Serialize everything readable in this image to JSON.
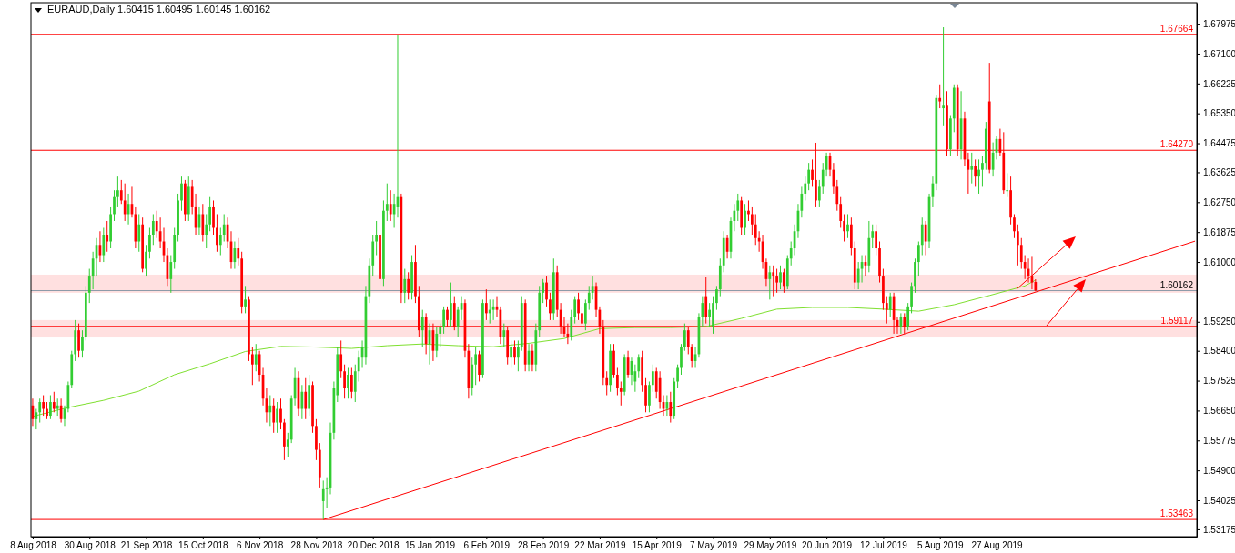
{
  "chart_data": {
    "type": "candlestick",
    "title": "EURAUD,Daily  1.60415 1.60495 1.60145 1.60162",
    "categories": [
      "8 Aug 2018",
      null,
      null,
      null,
      null,
      null,
      null,
      null,
      null,
      null,
      null,
      null,
      null,
      null,
      null,
      null,
      "30 Aug 2018",
      null,
      null,
      null,
      null,
      null,
      null,
      null,
      null,
      null,
      null,
      null,
      null,
      null,
      null,
      null,
      "21 Sep 2018",
      null,
      null,
      null,
      null,
      null,
      null,
      null,
      null,
      null,
      null,
      null,
      null,
      null,
      null,
      null,
      "15 Oct 2018",
      null,
      null,
      null,
      null,
      null,
      null,
      null,
      null,
      null,
      null,
      null,
      null,
      null,
      null,
      null,
      "6 Nov 2018",
      null,
      null,
      null,
      null,
      null,
      null,
      null,
      null,
      null,
      null,
      null,
      null,
      null,
      null,
      null,
      "28 Nov 2018",
      null,
      null,
      null,
      null,
      null,
      null,
      null,
      null,
      null,
      null,
      null,
      null,
      null,
      null,
      null,
      "20 Dec 2018",
      null,
      null,
      null,
      null,
      null,
      null,
      null,
      null,
      null,
      null,
      null,
      null,
      null,
      null,
      null,
      "15 Jan 2019",
      null,
      null,
      null,
      null,
      null,
      null,
      null,
      null,
      null,
      null,
      null,
      null,
      null,
      null,
      null,
      "6 Feb 2019",
      null,
      null,
      null,
      null,
      null,
      null,
      null,
      null,
      null,
      null,
      null,
      null,
      null,
      null,
      null,
      "28 Feb 2019",
      null,
      null,
      null,
      null,
      null,
      null,
      null,
      null,
      null,
      null,
      null,
      null,
      null,
      null,
      null,
      "22 Mar 2019",
      null,
      null,
      null,
      null,
      null,
      null,
      null,
      null,
      null,
      null,
      null,
      null,
      null,
      null,
      null,
      "15 Apr 2019",
      null,
      null,
      null,
      null,
      null,
      null,
      null,
      null,
      null,
      null,
      null,
      null,
      null,
      null,
      null,
      "7 May 2019",
      null,
      null,
      null,
      null,
      null,
      null,
      null,
      null,
      null,
      null,
      null,
      null,
      null,
      null,
      null,
      "29 May 2019",
      null,
      null,
      null,
      null,
      null,
      null,
      null,
      null,
      null,
      null,
      null,
      null,
      null,
      null,
      null,
      "20 Jun 2019",
      null,
      null,
      null,
      null,
      null,
      null,
      null,
      null,
      null,
      null,
      null,
      null,
      null,
      null,
      null,
      "12 Jul 2019",
      null,
      null,
      null,
      null,
      null,
      null,
      null,
      null,
      null,
      null,
      null,
      null,
      null,
      null,
      null,
      "5 Aug 2019",
      null,
      null,
      null,
      null,
      null,
      null,
      null,
      null,
      null,
      null,
      null,
      null,
      null,
      null,
      null,
      "27 Aug 2019",
      null,
      null,
      null,
      null,
      null,
      null,
      null,
      null,
      null,
      null,
      null,
      null,
      null,
      null,
      null,
      null,
      null,
      null,
      null,
      null,
      null,
      null,
      null,
      null,
      null,
      null,
      null,
      null,
      null,
      null,
      null,
      null,
      null,
      null,
      null,
      null,
      null,
      null,
      null,
      null,
      null,
      null,
      null,
      null,
      null,
      null,
      null,
      null,
      null,
      null,
      null,
      null,
      null,
      null,
      null,
      null
    ],
    "ohlc": [
      [
        1.568,
        1.57,
        1.562,
        1.564
      ],
      [
        1.564,
        1.567,
        1.561,
        1.566
      ],
      [
        1.566,
        1.57,
        1.563,
        1.569
      ],
      [
        1.569,
        1.571,
        1.565,
        1.567
      ],
      [
        1.567,
        1.569,
        1.564,
        1.565
      ],
      [
        1.565,
        1.571,
        1.564,
        1.569
      ],
      [
        1.569,
        1.572,
        1.566,
        1.567
      ],
      [
        1.567,
        1.57,
        1.565,
        1.568
      ],
      [
        1.568,
        1.57,
        1.563,
        1.564
      ],
      [
        1.564,
        1.568,
        1.562,
        1.567
      ],
      [
        1.567,
        1.575,
        1.566,
        1.574
      ],
      [
        1.574,
        1.584,
        1.573,
        1.583
      ],
      [
        1.583,
        1.593,
        1.581,
        1.59
      ],
      [
        1.59,
        1.592,
        1.582,
        1.584
      ],
      [
        1.584,
        1.59,
        1.582,
        1.588
      ],
      [
        1.588,
        1.603,
        1.587,
        1.601
      ],
      [
        1.601,
        1.608,
        1.598,
        1.606
      ],
      [
        1.606,
        1.613,
        1.602,
        1.611
      ],
      [
        1.611,
        1.617,
        1.606,
        1.615
      ],
      [
        1.615,
        1.619,
        1.61,
        1.612
      ],
      [
        1.612,
        1.62,
        1.61,
        1.618
      ],
      [
        1.618,
        1.622,
        1.613,
        1.616
      ],
      [
        1.616,
        1.626,
        1.614,
        1.624
      ],
      [
        1.624,
        1.631,
        1.622,
        1.629
      ],
      [
        1.629,
        1.635,
        1.626,
        1.631
      ],
      [
        1.631,
        1.634,
        1.627,
        1.628
      ],
      [
        1.628,
        1.633,
        1.622,
        1.624
      ],
      [
        1.624,
        1.63,
        1.621,
        1.627
      ],
      [
        1.627,
        1.632,
        1.623,
        1.624
      ],
      [
        1.624,
        1.626,
        1.614,
        1.616
      ],
      [
        1.616,
        1.624,
        1.613,
        1.621
      ],
      [
        1.621,
        1.623,
        1.607,
        1.608
      ],
      [
        1.608,
        1.615,
        1.606,
        1.613
      ],
      [
        1.613,
        1.62,
        1.611,
        1.618
      ],
      [
        1.618,
        1.624,
        1.615,
        1.622
      ],
      [
        1.622,
        1.625,
        1.617,
        1.619
      ],
      [
        1.619,
        1.623,
        1.614,
        1.616
      ],
      [
        1.616,
        1.62,
        1.61,
        1.612
      ],
      [
        1.612,
        1.614,
        1.603,
        1.605
      ],
      [
        1.605,
        1.612,
        1.601,
        1.61
      ],
      [
        1.61,
        1.62,
        1.608,
        1.618
      ],
      [
        1.618,
        1.63,
        1.616,
        1.628
      ],
      [
        1.628,
        1.635,
        1.625,
        1.633
      ],
      [
        1.633,
        1.634,
        1.622,
        1.624
      ],
      [
        1.624,
        1.635,
        1.622,
        1.632
      ],
      [
        1.632,
        1.634,
        1.624,
        1.626
      ],
      [
        1.626,
        1.63,
        1.618,
        1.62
      ],
      [
        1.62,
        1.626,
        1.618,
        1.624
      ],
      [
        1.624,
        1.627,
        1.616,
        1.618
      ],
      [
        1.618,
        1.624,
        1.614,
        1.621
      ],
      [
        1.621,
        1.629,
        1.619,
        1.626
      ],
      [
        1.626,
        1.628,
        1.618,
        1.62
      ],
      [
        1.62,
        1.624,
        1.613,
        1.615
      ],
      [
        1.615,
        1.62,
        1.612,
        1.618
      ],
      [
        1.618,
        1.624,
        1.616,
        1.621
      ],
      [
        1.621,
        1.623,
        1.614,
        1.616
      ],
      [
        1.616,
        1.619,
        1.608,
        1.61
      ],
      [
        1.61,
        1.616,
        1.608,
        1.614
      ],
      [
        1.614,
        1.617,
        1.609,
        1.611
      ],
      [
        1.611,
        1.613,
        1.595,
        1.597
      ],
      [
        1.597,
        1.603,
        1.595,
        1.599
      ],
      [
        1.599,
        1.6,
        1.581,
        1.583
      ],
      [
        1.583,
        1.585,
        1.574,
        1.58
      ],
      [
        1.58,
        1.586,
        1.578,
        1.583
      ],
      [
        1.583,
        1.584,
        1.575,
        1.577
      ],
      [
        1.577,
        1.579,
        1.568,
        1.57
      ],
      [
        1.57,
        1.573,
        1.563,
        1.566
      ],
      [
        1.566,
        1.571,
        1.562,
        1.568
      ],
      [
        1.568,
        1.57,
        1.56,
        1.563
      ],
      [
        1.563,
        1.569,
        1.56,
        1.567
      ],
      [
        1.567,
        1.57,
        1.561,
        1.563
      ],
      [
        1.563,
        1.564,
        1.552,
        1.556
      ],
      [
        1.556,
        1.56,
        1.553,
        1.558
      ],
      [
        1.558,
        1.571,
        1.557,
        1.57
      ],
      [
        1.57,
        1.579,
        1.568,
        1.576
      ],
      [
        1.576,
        1.578,
        1.565,
        1.567
      ],
      [
        1.567,
        1.574,
        1.564,
        1.572
      ],
      [
        1.572,
        1.576,
        1.564,
        1.567
      ],
      [
        1.567,
        1.577,
        1.565,
        1.574
      ],
      [
        1.574,
        1.575,
        1.56,
        1.562
      ],
      [
        1.562,
        1.564,
        1.552,
        1.555
      ],
      [
        1.555,
        1.557,
        1.544,
        1.547
      ],
      [
        1.54,
        1.546,
        1.5346,
        1.5435
      ],
      [
        1.5435,
        1.547,
        1.538,
        1.544
      ],
      [
        1.544,
        1.563,
        1.542,
        1.56
      ],
      [
        1.56,
        1.575,
        1.558,
        1.573
      ],
      [
        1.571,
        1.585,
        1.569,
        1.583
      ],
      [
        1.583,
        1.587,
        1.576,
        1.578
      ],
      [
        1.578,
        1.58,
        1.57,
        1.573
      ],
      [
        1.573,
        1.579,
        1.57,
        1.577
      ],
      [
        1.577,
        1.579,
        1.57,
        1.572
      ],
      [
        1.572,
        1.58,
        1.569,
        1.578
      ],
      [
        1.578,
        1.584,
        1.575,
        1.582
      ],
      [
        1.582,
        1.587,
        1.579,
        1.585
      ],
      [
        1.582,
        1.603,
        1.58,
        1.6
      ],
      [
        1.6,
        1.611,
        1.598,
        1.609
      ],
      [
        1.609,
        1.618,
        1.606,
        1.616
      ],
      [
        1.616,
        1.622,
        1.612,
        1.618
      ],
      [
        1.618,
        1.62,
        1.603,
        1.605
      ],
      [
        1.605,
        1.628,
        1.603,
        1.625
      ],
      [
        1.625,
        1.633,
        1.622,
        1.627
      ],
      [
        1.627,
        1.631,
        1.622,
        1.624
      ],
      [
        1.624,
        1.63,
        1.62,
        1.627
      ],
      [
        1.626,
        1.6766,
        1.623,
        1.629
      ],
      [
        1.629,
        1.63,
        1.598,
        1.601
      ],
      [
        1.601,
        1.608,
        1.598,
        1.605
      ],
      [
        1.605,
        1.607,
        1.599,
        1.601
      ],
      [
        1.601,
        1.612,
        1.599,
        1.61
      ],
      [
        1.61,
        1.615,
        1.598,
        1.6
      ],
      [
        1.6,
        1.603,
        1.588,
        1.59
      ],
      [
        1.59,
        1.596,
        1.585,
        1.594
      ],
      [
        1.594,
        1.595,
        1.583,
        1.586
      ],
      [
        1.586,
        1.592,
        1.58,
        1.59
      ],
      [
        1.59,
        1.592,
        1.581,
        1.584
      ],
      [
        1.584,
        1.591,
        1.582,
        1.589
      ],
      [
        1.589,
        1.592,
        1.585,
        1.591
      ],
      [
        1.591,
        1.597,
        1.589,
        1.596
      ],
      [
        1.596,
        1.597,
        1.591,
        1.593
      ],
      [
        1.593,
        1.604,
        1.591,
        1.598
      ],
      [
        1.598,
        1.6,
        1.59,
        1.591
      ],
      [
        1.591,
        1.597,
        1.588,
        1.596
      ],
      [
        1.596,
        1.6,
        1.593,
        1.598
      ],
      [
        1.598,
        1.599,
        1.582,
        1.584
      ],
      [
        1.584,
        1.586,
        1.57,
        1.573
      ],
      [
        1.573,
        1.582,
        1.571,
        1.58
      ],
      [
        1.58,
        1.585,
        1.574,
        1.583
      ],
      [
        1.583,
        1.584,
        1.575,
        1.577
      ],
      [
        1.577,
        1.599,
        1.576,
        1.598
      ],
      [
        1.598,
        1.602,
        1.593,
        1.595
      ],
      [
        1.595,
        1.599,
        1.592,
        1.596
      ],
      [
        1.596,
        1.599,
        1.593,
        1.597
      ],
      [
        1.597,
        1.6,
        1.594,
        1.596
      ],
      [
        1.596,
        1.597,
        1.586,
        1.588
      ],
      [
        1.588,
        1.592,
        1.585,
        1.59
      ],
      [
        1.59,
        1.591,
        1.58,
        1.582
      ],
      [
        1.582,
        1.587,
        1.579,
        1.585
      ],
      [
        1.585,
        1.587,
        1.58,
        1.582
      ],
      [
        1.582,
        1.587,
        1.578,
        1.585
      ],
      [
        1.585,
        1.6,
        1.584,
        1.598
      ],
      [
        1.598,
        1.599,
        1.578,
        1.58
      ],
      [
        1.58,
        1.586,
        1.578,
        1.584
      ],
      [
        1.584,
        1.586,
        1.578,
        1.58
      ],
      [
        1.58,
        1.592,
        1.578,
        1.59
      ],
      [
        1.59,
        1.603,
        1.588,
        1.601
      ],
      [
        1.601,
        1.605,
        1.598,
        1.604
      ],
      [
        1.604,
        1.606,
        1.597,
        1.599
      ],
      [
        1.599,
        1.601,
        1.593,
        1.595
      ],
      [
        1.595,
        1.611,
        1.593,
        1.607
      ],
      [
        1.607,
        1.609,
        1.594,
        1.596
      ],
      [
        1.596,
        1.598,
        1.589,
        1.591
      ],
      [
        1.591,
        1.594,
        1.588,
        1.589
      ],
      [
        1.589,
        1.592,
        1.586,
        1.588
      ],
      [
        1.588,
        1.596,
        1.587,
        1.594
      ],
      [
        1.594,
        1.6,
        1.592,
        1.599
      ],
      [
        1.599,
        1.601,
        1.593,
        1.595
      ],
      [
        1.595,
        1.597,
        1.591,
        1.592
      ],
      [
        1.592,
        1.599,
        1.59,
        1.598
      ],
      [
        1.598,
        1.603,
        1.596,
        1.601
      ],
      [
        1.601,
        1.606,
        1.599,
        1.603
      ],
      [
        1.603,
        1.604,
        1.594,
        1.596
      ],
      [
        1.596,
        1.597,
        1.589,
        1.591
      ],
      [
        1.591,
        1.593,
        1.574,
        1.576
      ],
      [
        1.576,
        1.578,
        1.571,
        1.574
      ],
      [
        1.574,
        1.586,
        1.572,
        1.584
      ],
      [
        1.584,
        1.586,
        1.576,
        1.577
      ],
      [
        1.577,
        1.579,
        1.571,
        1.573
      ],
      [
        1.573,
        1.575,
        1.568,
        1.572
      ],
      [
        1.572,
        1.583,
        1.571,
        1.582
      ],
      [
        1.582,
        1.584,
        1.576,
        1.577
      ],
      [
        1.577,
        1.582,
        1.574,
        1.581
      ],
      [
        1.575,
        1.58,
        1.572,
        1.578
      ],
      [
        1.578,
        1.583,
        1.576,
        1.582
      ],
      [
        1.582,
        1.584,
        1.572,
        1.574
      ],
      [
        1.574,
        1.576,
        1.566,
        1.568
      ],
      [
        1.568,
        1.575,
        1.566,
        1.574
      ],
      [
        1.574,
        1.58,
        1.572,
        1.578
      ],
      [
        1.578,
        1.579,
        1.57,
        1.572
      ],
      [
        1.576,
        1.578,
        1.567,
        1.569
      ],
      [
        1.569,
        1.571,
        1.565,
        1.567
      ],
      [
        1.567,
        1.571,
        1.565,
        1.569
      ],
      [
        1.569,
        1.572,
        1.563,
        1.565
      ],
      [
        1.565,
        1.576,
        1.564,
        1.575
      ],
      [
        1.575,
        1.58,
        1.573,
        1.579
      ],
      [
        1.579,
        1.586,
        1.577,
        1.585
      ],
      [
        1.585,
        1.592,
        1.584,
        1.59
      ],
      [
        1.59,
        1.591,
        1.583,
        1.585
      ],
      [
        1.585,
        1.586,
        1.579,
        1.581
      ],
      [
        1.581,
        1.585,
        1.579,
        1.583
      ],
      [
        1.583,
        1.595,
        1.582,
        1.594
      ],
      [
        1.594,
        1.6,
        1.591,
        1.598
      ],
      [
        1.6,
        1.6056,
        1.592,
        1.594
      ],
      [
        1.594,
        1.598,
        1.591,
        1.596
      ],
      [
        1.591,
        1.6,
        1.589,
        1.598
      ],
      [
        1.598,
        1.603,
        1.596,
        1.602
      ],
      [
        1.602,
        1.611,
        1.6,
        1.609
      ],
      [
        1.609,
        1.619,
        1.607,
        1.617
      ],
      [
        1.617,
        1.618,
        1.611,
        1.613
      ],
      [
        1.613,
        1.623,
        1.611,
        1.622
      ],
      [
        1.622,
        1.627,
        1.619,
        1.625
      ],
      [
        1.625,
        1.63,
        1.622,
        1.628
      ],
      [
        1.628,
        1.629,
        1.618,
        1.62
      ],
      [
        1.62,
        1.627,
        1.618,
        1.625
      ],
      [
        1.625,
        1.628,
        1.622,
        1.624
      ],
      [
        1.624,
        1.626,
        1.618,
        1.621
      ],
      [
        1.621,
        1.624,
        1.615,
        1.617
      ],
      [
        1.617,
        1.619,
        1.613,
        1.616
      ],
      [
        1.616,
        1.618,
        1.608,
        1.61
      ],
      [
        1.61,
        1.611,
        1.603,
        1.605
      ],
      [
        1.605,
        1.609,
        1.599,
        1.607
      ],
      [
        1.607,
        1.609,
        1.6,
        1.606
      ],
      [
        1.606,
        1.608,
        1.601,
        1.604
      ],
      [
        1.604,
        1.609,
        1.602,
        1.607
      ],
      [
        1.607,
        1.608,
        1.601,
        1.603
      ],
      [
        1.603,
        1.612,
        1.602,
        1.611
      ],
      [
        1.611,
        1.616,
        1.609,
        1.614
      ],
      [
        1.614,
        1.621,
        1.612,
        1.619
      ],
      [
        1.619,
        1.627,
        1.617,
        1.625
      ],
      [
        1.625,
        1.632,
        1.623,
        1.63
      ],
      [
        1.63,
        1.635,
        1.628,
        1.633
      ],
      [
        1.633,
        1.639,
        1.631,
        1.637
      ],
      [
        1.637,
        1.64,
        1.632,
        1.634
      ],
      [
        1.634,
        1.6449,
        1.626,
        1.628
      ],
      [
        1.628,
        1.634,
        1.626,
        1.632
      ],
      [
        1.632,
        1.639,
        1.63,
        1.637
      ],
      [
        1.637,
        1.642,
        1.635,
        1.641
      ],
      [
        1.641,
        1.642,
        1.635,
        1.637
      ],
      [
        1.637,
        1.639,
        1.63,
        1.632
      ],
      [
        1.632,
        1.634,
        1.625,
        1.627
      ],
      [
        1.627,
        1.629,
        1.62,
        1.622
      ],
      [
        1.622,
        1.624,
        1.616,
        1.619
      ],
      [
        1.619,
        1.624,
        1.617,
        1.621
      ],
      [
        1.621,
        1.623,
        1.612,
        1.614
      ],
      [
        1.614,
        1.616,
        1.602,
        1.604
      ],
      [
        1.604,
        1.61,
        1.602,
        1.608
      ],
      [
        1.608,
        1.612,
        1.604,
        1.61
      ],
      [
        1.61,
        1.612,
        1.606,
        1.609
      ],
      [
        1.609,
        1.622,
        1.607,
        1.617
      ],
      [
        1.617,
        1.621,
        1.614,
        1.619
      ],
      [
        1.619,
        1.621,
        1.612,
        1.614
      ],
      [
        1.614,
        1.616,
        1.604,
        1.606
      ],
      [
        1.606,
        1.608,
        1.596,
        1.598
      ],
      [
        1.598,
        1.6,
        1.592,
        1.596
      ],
      [
        1.596,
        1.601,
        1.594,
        1.6
      ],
      [
        1.6,
        1.601,
        1.589,
        1.593
      ],
      [
        1.593,
        1.594,
        1.589,
        1.591
      ],
      [
        1.591,
        1.595,
        1.589,
        1.594
      ],
      [
        1.594,
        1.595,
        1.589,
        1.591
      ],
      [
        1.591,
        1.598,
        1.59,
        1.597
      ],
      [
        1.597,
        1.604,
        1.595,
        1.603
      ],
      [
        1.603,
        1.611,
        1.601,
        1.61
      ],
      [
        1.61,
        1.616,
        1.606,
        1.615
      ],
      [
        1.615,
        1.623,
        1.612,
        1.621
      ],
      [
        1.621,
        1.622,
        1.612,
        1.616
      ],
      [
        1.616,
        1.63,
        1.614,
        1.629
      ],
      [
        1.629,
        1.635,
        1.626,
        1.633
      ],
      [
        1.633,
        1.659,
        1.631,
        1.658
      ],
      [
        1.658,
        1.662,
        1.655,
        1.657
      ],
      [
        1.655,
        1.6787,
        1.65,
        1.656
      ],
      [
        1.656,
        1.66,
        1.641,
        1.643
      ],
      [
        1.643,
        1.653,
        1.641,
        1.652
      ],
      [
        1.652,
        1.662,
        1.648,
        1.661
      ],
      [
        1.661,
        1.662,
        1.641,
        1.643
      ],
      [
        1.643,
        1.66,
        1.64,
        1.652
      ],
      [
        1.652,
        1.654,
        1.638,
        1.64
      ],
      [
        1.64,
        1.642,
        1.63,
        1.637
      ],
      [
        1.637,
        1.642,
        1.633,
        1.638
      ],
      [
        1.638,
        1.64,
        1.632,
        1.635
      ],
      [
        1.635,
        1.64,
        1.63,
        1.637
      ],
      [
        1.637,
        1.641,
        1.632,
        1.639
      ],
      [
        1.639,
        1.651,
        1.637,
        1.649
      ],
      [
        1.657,
        1.6683,
        1.636,
        1.637
      ],
      [
        1.637,
        1.645,
        1.635,
        1.642
      ],
      [
        1.642,
        1.647,
        1.64,
        1.646
      ],
      [
        1.646,
        1.649,
        1.641,
        1.642
      ],
      [
        1.642,
        1.648,
        1.63,
        1.631
      ],
      [
        1.631,
        1.636,
        1.629,
        1.631
      ],
      [
        1.631,
        1.635,
        1.621,
        1.623
      ],
      [
        1.623,
        1.624,
        1.617,
        1.619
      ],
      [
        1.619,
        1.621,
        1.609,
        1.615
      ],
      [
        1.615,
        1.617,
        1.608,
        1.61
      ],
      [
        1.61,
        1.612,
        1.605,
        1.608
      ],
      [
        1.608,
        1.611,
        1.604,
        1.606
      ],
      [
        1.606,
        1.6115,
        1.602,
        1.604
      ],
      [
        1.60415,
        1.60495,
        1.60145,
        1.60162
      ],
      null,
      null,
      null,
      null,
      null,
      null,
      null,
      null,
      null,
      null,
      null,
      null,
      null,
      null,
      null,
      null,
      null,
      null,
      null,
      null,
      null,
      null,
      null,
      null,
      null,
      null,
      null,
      null,
      null,
      null,
      null,
      null,
      null,
      null,
      null,
      null,
      null,
      null,
      null,
      null,
      null,
      null,
      null,
      null,
      null
    ],
    "series": [
      {
        "type": "line",
        "color": "#7fe030",
        "values": [
          1.5648,
          null,
          null,
          null,
          null,
          null,
          null,
          null,
          null,
          null,
          1.5674,
          null,
          null,
          null,
          null,
          null,
          null,
          null,
          null,
          null,
          1.5695,
          null,
          null,
          null,
          null,
          null,
          null,
          null,
          null,
          null,
          1.5722,
          null,
          null,
          null,
          null,
          null,
          null,
          null,
          null,
          null,
          1.577,
          null,
          null,
          null,
          null,
          null,
          null,
          null,
          null,
          null,
          1.5802,
          null,
          null,
          null,
          null,
          null,
          null,
          null,
          null,
          null,
          1.5838,
          null,
          null,
          null,
          null,
          null,
          null,
          null,
          null,
          null,
          1.5853,
          null,
          null,
          null,
          null,
          null,
          null,
          null,
          null,
          null,
          1.5851,
          null,
          null,
          null,
          null,
          null,
          null,
          null,
          null,
          null,
          1.5847,
          null,
          null,
          null,
          null,
          null,
          null,
          null,
          null,
          null,
          1.5855,
          null,
          null,
          null,
          null,
          null,
          null,
          null,
          null,
          null,
          1.586,
          null,
          null,
          null,
          null,
          null,
          null,
          null,
          null,
          null,
          1.5855,
          null,
          null,
          null,
          null,
          null,
          null,
          null,
          null,
          null,
          1.5852,
          null,
          null,
          null,
          null,
          null,
          null,
          null,
          null,
          null,
          1.5862,
          null,
          null,
          null,
          null,
          null,
          null,
          null,
          null,
          null,
          1.5876,
          null,
          null,
          null,
          null,
          null,
          null,
          null,
          null,
          null,
          1.5905,
          null,
          null,
          null,
          null,
          null,
          null,
          null,
          null,
          null,
          1.5908,
          null,
          null,
          null,
          null,
          null,
          null,
          null,
          null,
          null,
          1.5908,
          null,
          null,
          null,
          null,
          null,
          null,
          null,
          null,
          null,
          1.5911,
          null,
          null,
          null,
          null,
          null,
          null,
          null,
          null,
          null,
          1.5935,
          null,
          null,
          null,
          null,
          null,
          null,
          null,
          null,
          null,
          1.5962,
          null,
          null,
          null,
          null,
          null,
          null,
          null,
          null,
          null,
          1.5967,
          null,
          null,
          null,
          null,
          null,
          null,
          null,
          null,
          null,
          1.5967,
          null,
          null,
          null,
          null,
          null,
          null,
          null,
          null,
          null,
          1.5962,
          null,
          null,
          null,
          null,
          null,
          null,
          null,
          null,
          null,
          1.5956,
          null,
          null,
          null,
          null,
          null,
          null,
          null,
          null,
          null,
          1.5975,
          null,
          null,
          null,
          null,
          null,
          null,
          null,
          null,
          null,
          1.6002,
          null,
          null,
          null,
          null,
          null,
          null,
          null,
          null,
          null,
          1.603,
          null,
          null,
          1.6047,
          null,
          null,
          null,
          null,
          null,
          null,
          null,
          null,
          null,
          null,
          null,
          null,
          null,
          null,
          null,
          null,
          null,
          null,
          null,
          null,
          null,
          null,
          null,
          null,
          null,
          null,
          null,
          null,
          null,
          null,
          null,
          null,
          null,
          null,
          null,
          null,
          null,
          null,
          null,
          null,
          null,
          null,
          null,
          null,
          null
        ]
      },
      {
        "type": "line",
        "color": "#ff0000",
        "values": [
          null,
          null,
          null,
          null,
          null,
          null,
          null,
          null,
          null,
          null,
          null,
          null,
          null,
          null,
          null,
          null,
          null,
          null,
          null,
          null,
          null,
          null,
          null,
          null,
          null,
          null,
          null,
          null,
          null,
          null,
          null,
          null,
          null,
          null,
          null,
          null,
          null,
          null,
          null,
          null,
          null,
          null,
          null,
          null,
          null,
          null,
          null,
          null,
          null,
          null,
          null,
          null,
          null,
          null,
          null,
          null,
          null,
          null,
          null,
          null,
          null,
          null,
          null,
          null,
          null,
          null,
          null,
          null,
          null,
          null,
          null,
          null,
          null,
          null,
          null,
          null,
          null,
          null,
          null,
          null,
          null,
          null,
          1.5346,
          null,
          null,
          null,
          null,
          null,
          null,
          null,
          null,
          null,
          null,
          null,
          null,
          null,
          null,
          null,
          null,
          null,
          null,
          null,
          null,
          null,
          null,
          null,
          null,
          null,
          null,
          null,
          null,
          null,
          null,
          null,
          null,
          null,
          null,
          null,
          null,
          null,
          null,
          null,
          null,
          null,
          null,
          null,
          null,
          null,
          null,
          null,
          null,
          null,
          null,
          null,
          null,
          null,
          null,
          null,
          null,
          null,
          null,
          null,
          null,
          null,
          null,
          null,
          null,
          null,
          null,
          null,
          null,
          null,
          null,
          null,
          null,
          null,
          null,
          null,
          null,
          null,
          null,
          null,
          null,
          null,
          null,
          null,
          null,
          null,
          null,
          null,
          null,
          null,
          null,
          null,
          null,
          null,
          null,
          null,
          null,
          null,
          null,
          null,
          null,
          null,
          null,
          null,
          null,
          null,
          null,
          null,
          null,
          null,
          null,
          null,
          null,
          null,
          null,
          null,
          null,
          null,
          null,
          null,
          null,
          null,
          null,
          null,
          null,
          null,
          null,
          null,
          null,
          null,
          null,
          null,
          null,
          null,
          null,
          null,
          null,
          null,
          null,
          null,
          null,
          null,
          null,
          null,
          null,
          null,
          null,
          null,
          null,
          null,
          null,
          null,
          null,
          null,
          null,
          null,
          null,
          null,
          null,
          null,
          null,
          null,
          null,
          null,
          null,
          null,
          null,
          null,
          null,
          null,
          null,
          null,
          null,
          null,
          null,
          null,
          null,
          null,
          null,
          null,
          null,
          null,
          null,
          null,
          null,
          null,
          null,
          null,
          null,
          null,
          null,
          null,
          null,
          null,
          null,
          null,
          null,
          null,
          null,
          null,
          null,
          null,
          null,
          null,
          null,
          null,
          null,
          null,
          null,
          null,
          null,
          null,
          null,
          null,
          null,
          null,
          null,
          null,
          null,
          null,
          null,
          null,
          null,
          null,
          null,
          null,
          null,
          null,
          null,
          null,
          null,
          null,
          null,
          null,
          null,
          null,
          null,
          null,
          null,
          null,
          null,
          null,
          null,
          null,
          null,
          null,
          1.6161
        ]
      }
    ],
    "ylim": [
      1.5296,
      1.6859
    ],
    "yticks": [
      1.67975,
      {
        "value": 1.671,
        "label": "1.67100"
      },
      1.66225,
      {
        "value": 1.6535,
        "label": "1.65350"
      },
      1.64475,
      1.63625,
      {
        "value": 1.6275,
        "label": "1.62750"
      },
      1.61875,
      {
        "value": 1.61,
        "label": "1.61000"
      },
      {
        "value": 1.5925,
        "label": "1.59250"
      },
      {
        "value": 1.584,
        "label": "1.58400"
      },
      1.57525,
      {
        "value": 1.5665,
        "label": "1.56650"
      },
      1.55775,
      {
        "value": 1.549,
        "label": "1.54900"
      },
      1.54025,
      1.53175
    ],
    "ref_lines": [
      {
        "axis": "y",
        "value": 1.67664,
        "label": "1.67664",
        "color": "#ff0000"
      },
      {
        "axis": "y",
        "value": 1.6427,
        "label": "1.64270",
        "color": "#ff0000"
      },
      {
        "axis": "y",
        "value": 1.60162,
        "label": "1.60162",
        "color": "#8c9aa8"
      },
      {
        "axis": "y",
        "value": 1.59117,
        "label": "1.59117",
        "color": "#ff0000"
      },
      {
        "axis": "y",
        "value": 1.53463,
        "label": "1.53463",
        "color": "#ff0000"
      }
    ],
    "bands": [
      {
        "axis": "y",
        "from": 1.601,
        "to": 1.6063,
        "color": "#ffe0e0"
      },
      {
        "axis": "y",
        "from": 1.5879,
        "to": 1.593,
        "color": "#ffe0e0"
      }
    ]
  }
}
